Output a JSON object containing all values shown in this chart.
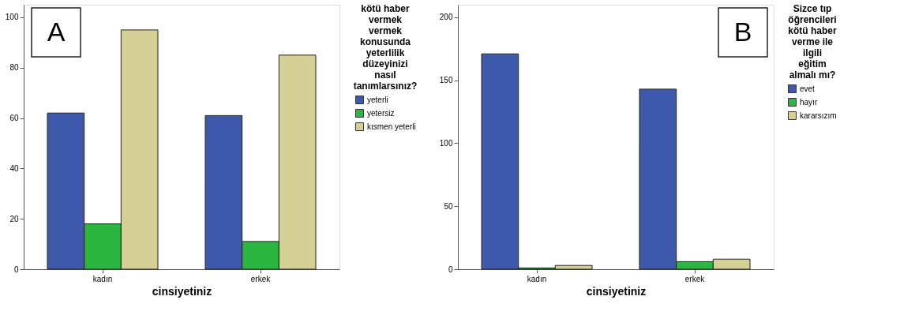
{
  "chart_data": [
    {
      "type": "bar",
      "xlabel": "cinsiyetiniz",
      "legend_title": "kötü haber vermek vermek konusunda yeterlilik düzeyinizi nasıl tanımlarsınız?",
      "categories": [
        "kadın",
        "erkek"
      ],
      "ylim": [
        0,
        105
      ],
      "yticks": [
        0,
        20,
        40,
        60,
        80,
        100
      ],
      "legend": "top right",
      "annotations": [
        "A"
      ],
      "series": [
        {
          "name": "yeterli",
          "color": "#3e58ac",
          "values": [
            62,
            61
          ]
        },
        {
          "name": "yetersiz",
          "color": "#2bb541",
          "values": [
            18,
            11
          ]
        },
        {
          "name": "kısmen yeterli",
          "color": "#d4cf94",
          "values": [
            95,
            85
          ]
        }
      ]
    },
    {
      "type": "bar",
      "xlabel": "cinsiyetiniz",
      "legend_title": "Sizce tıp öğrencileri kötü haber verme ile ilgili eğitim almalı mı?",
      "categories": [
        "kadın",
        "erkek"
      ],
      "ylim": [
        0,
        210
      ],
      "yticks": [
        0,
        50,
        100,
        150,
        200
      ],
      "legend": "top right",
      "annotations": [
        "B"
      ],
      "series": [
        {
          "name": "evet",
          "color": "#3e58ac",
          "values": [
            171,
            143
          ]
        },
        {
          "name": "hayır",
          "color": "#2bb541",
          "values": [
            1,
            6
          ]
        },
        {
          "name": "kararsızım",
          "color": "#d4cf94",
          "values": [
            3,
            8
          ]
        }
      ]
    }
  ]
}
